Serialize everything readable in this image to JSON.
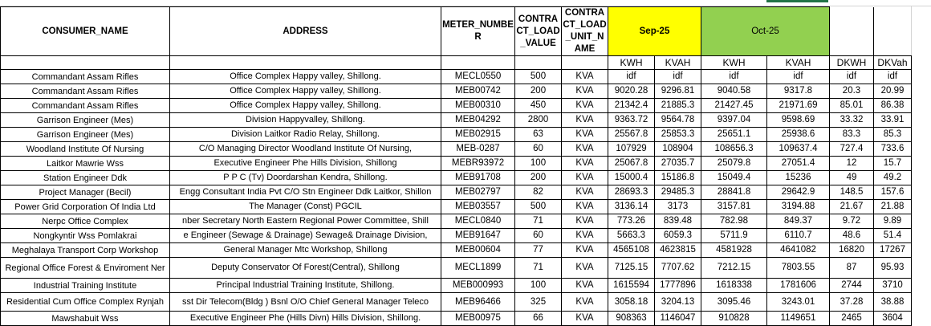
{
  "headers": {
    "consumer_name": "CONSUMER_NAME",
    "address": "ADDRESS",
    "meter_number": "METER_NUMBER",
    "contract_load_value": "CONTRACT_LOAD_VALUE",
    "contract_load_unit_name": "CONTRACT_LOAD_UNIT_NAME",
    "sep": "Sep-25",
    "oct": "Oct-25"
  },
  "subheaders": [
    "KWH",
    "KVAH",
    "KWH",
    "KVAH",
    "DKWH",
    "DKVah"
  ],
  "colors": {
    "sep_fill": "#ffff00",
    "oct_fill": "#92d050",
    "selected_column_marker": "#217346"
  },
  "rows": [
    [
      "Commandant Assam Rifles",
      "Office Complex Happy valley, Shillong.",
      "MECL0550",
      "500",
      "KVA",
      "idf",
      "idf",
      "idf",
      "idf",
      "idf",
      "idf"
    ],
    [
      "Commandant Assam Rifles",
      "Office Complex Happy valley, Shillong.",
      "MEB00742",
      "200",
      "KVA",
      "9020.28",
      "9296.81",
      "9040.58",
      "9317.8",
      "20.3",
      "20.99"
    ],
    [
      "Commandant Assam Rifles",
      "Office Complex Happy valley, Shillong.",
      "MEB00310",
      "450",
      "KVA",
      "21342.4",
      "21885.3",
      "21427.45",
      "21971.69",
      "85.01",
      "86.38"
    ],
    [
      "Garrison Engineer (Mes)",
      "Division Happyvalley, Shillong.",
      "MEB04292",
      "2800",
      "KVA",
      "9363.72",
      "9564.78",
      "9397.04",
      "9598.69",
      "33.32",
      "33.91"
    ],
    [
      "Garrison Engineer (Mes)",
      "Division Laitkor Radio Relay, Shillong.",
      "MEB02915",
      "63",
      "KVA",
      "25567.8",
      "25853.3",
      "25651.1",
      "25938.6",
      "83.3",
      "85.3"
    ],
    [
      "Woodland Institute Of Nursing",
      "C/O Managing Director Woodland Institute Of Nursing,",
      "MEB-0287",
      "60",
      "KVA",
      "107929",
      "108904",
      "108656.3",
      "109637.4",
      "727.4",
      "733.6"
    ],
    [
      "Laitkor Mawrie Wss",
      "Executive Engineer Phe Hills Division, Shillong",
      "MEBR93972",
      "100",
      "KVA",
      "25067.8",
      "27035.7",
      "25079.8",
      "27051.4",
      "12",
      "15.7"
    ],
    [
      "Station Engineer Ddk",
      "P P C (Tv) Doordarshan Kendra, Shillong.",
      "MEB91708",
      "200",
      "KVA",
      "15000.4",
      "15186.8",
      "15049.4",
      "15236",
      "49",
      "49.2"
    ],
    [
      "Project Manager (Becil)",
      "Engg Consultant India Pvt C/O Stn Engineer Ddk Laitkor, Shillon",
      "MEB02797",
      "82",
      "KVA",
      "28693.3",
      "29485.3",
      "28841.8",
      "29642.9",
      "148.5",
      "157.6"
    ],
    [
      "Power Grid Corporation Of India Ltd",
      "The Manager (Const) PGCIL",
      "MEB03557",
      "500",
      "KVA",
      "3136.14",
      "3173",
      "3157.81",
      "3194.88",
      "21.67",
      "21.88"
    ],
    [
      "Nerpc Office Complex",
      "nber Secretary North Eastern Regional Power Committee, Shill",
      "MECL0840",
      "71",
      "KVA",
      "773.26",
      "839.48",
      "782.98",
      "849.37",
      "9.72",
      "9.89"
    ],
    [
      "Nongkyntir Wss Pomlakrai",
      "e Engineer (Sewage & Drainage) Sewage& Drainage Division,",
      "MEB91647",
      "60",
      "KVA",
      "5663.3",
      "6059.3",
      "5711.9",
      "6110.7",
      "48.6",
      "51.4"
    ],
    [
      "Meghalaya Transport Corp Workshop",
      "General Manager Mtc Workshop, Shillong",
      "MEB00604",
      "77",
      "KVA",
      "4565108",
      "4623815",
      "4581928",
      "4641082",
      "16820",
      "17267"
    ],
    [
      "Regional Office Forest & Enviroment Ner",
      "Deputy Conservator Of Forest(Central), Shillong",
      "MECL1899",
      "71",
      "KVA",
      "7125.15",
      "7707.62",
      "7212.15",
      "7803.55",
      "87",
      "95.93"
    ],
    [
      "Industrial Training Institute",
      "Principal Industrial Training Institute, Shillong.",
      "MEB000993",
      "100",
      "KVA",
      "1615594",
      "1777896",
      "1618338",
      "1781606",
      "2744",
      "3710"
    ],
    [
      "Residential Cum Office Complex Rynjah",
      "sst Dir Telecom(Bldg ) Bsnl O/O Chief General Manager Teleco",
      "MEB96466",
      "325",
      "KVA",
      "3058.18",
      "3204.13",
      "3095.46",
      "3243.01",
      "37.28",
      "38.88"
    ],
    [
      "Mawshabuit  Wss",
      "Executive Engineer Phe (Hills Divn) Hills Division, Shillong.",
      "MEB00975",
      "66",
      "KVA",
      "908363",
      "1146047",
      "910828",
      "1149651",
      "2465",
      "3604"
    ]
  ]
}
